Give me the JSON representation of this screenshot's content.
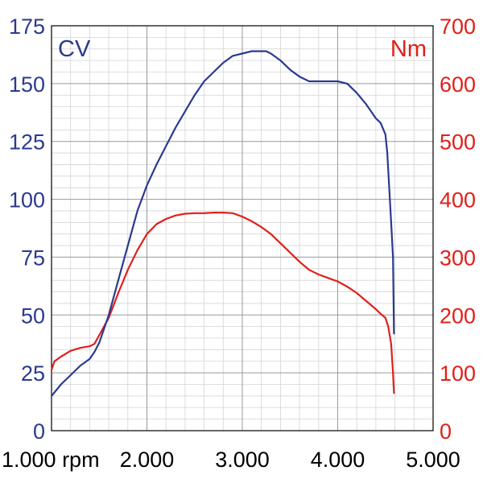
{
  "chart_data": {
    "type": "line",
    "x_unit": "rpm",
    "x_ticks": [
      1000,
      2000,
      3000,
      4000,
      5000
    ],
    "x_tick_labels": [
      "1.000 rpm",
      "2.000",
      "3.000",
      "4.000",
      "5.000"
    ],
    "xlim": [
      1000,
      5000
    ],
    "left_axis": {
      "label": "CV",
      "color": "#2b3a8f",
      "ylim": [
        0,
        175
      ],
      "ticks": [
        0,
        25,
        50,
        75,
        100,
        125,
        150,
        175
      ],
      "tick_labels": [
        "0",
        "25",
        "50",
        "75",
        "100",
        "125",
        "150",
        "175"
      ]
    },
    "right_axis": {
      "label": "Nm",
      "color": "#e0201b",
      "ylim": [
        0,
        700
      ],
      "ticks": [
        0,
        100,
        200,
        300,
        400,
        500,
        600,
        700
      ],
      "tick_labels": [
        "0",
        "100",
        "200",
        "300",
        "400",
        "500",
        "600",
        "700"
      ]
    },
    "grid": true,
    "series": [
      {
        "axis": "left",
        "color": "#2b3a8f",
        "x": [
          1000,
          1100,
          1200,
          1300,
          1400,
          1450,
          1500,
          1600,
          1700,
          1800,
          1900,
          2000,
          2100,
          2200,
          2300,
          2400,
          2500,
          2600,
          2700,
          2800,
          2900,
          3000,
          3100,
          3200,
          3250,
          3300,
          3400,
          3500,
          3600,
          3700,
          3800,
          3900,
          4000,
          4100,
          4200,
          4300,
          4400,
          4450,
          4500,
          4520,
          4540,
          4560,
          4580,
          4590
        ],
        "values": [
          15,
          20,
          24,
          28,
          31,
          34,
          38,
          50,
          65,
          80,
          95,
          106,
          115,
          123,
          131,
          138,
          145,
          151,
          155,
          159,
          162,
          163,
          164,
          164,
          164,
          163,
          160,
          156,
          153,
          151,
          151,
          151,
          151,
          150,
          146,
          141,
          135,
          133,
          128,
          120,
          105,
          90,
          75,
          42
        ]
      },
      {
        "axis": "right",
        "color": "#e0201b",
        "x": [
          1000,
          1030,
          1100,
          1200,
          1300,
          1400,
          1450,
          1500,
          1600,
          1700,
          1800,
          1900,
          2000,
          2100,
          2200,
          2300,
          2400,
          2500,
          2600,
          2700,
          2800,
          2900,
          3000,
          3100,
          3200,
          3300,
          3400,
          3500,
          3600,
          3700,
          3800,
          3900,
          4000,
          4100,
          4200,
          4300,
          4400,
          4450,
          4500,
          4530,
          4560,
          4580,
          4590
        ],
        "values": [
          105,
          120,
          128,
          138,
          143,
          146,
          150,
          165,
          195,
          238,
          278,
          312,
          340,
          357,
          366,
          372,
          375,
          376,
          376,
          377,
          377,
          376,
          370,
          362,
          352,
          340,
          324,
          308,
          292,
          278,
          270,
          264,
          258,
          249,
          238,
          224,
          210,
          202,
          195,
          180,
          150,
          100,
          65
        ]
      }
    ]
  }
}
